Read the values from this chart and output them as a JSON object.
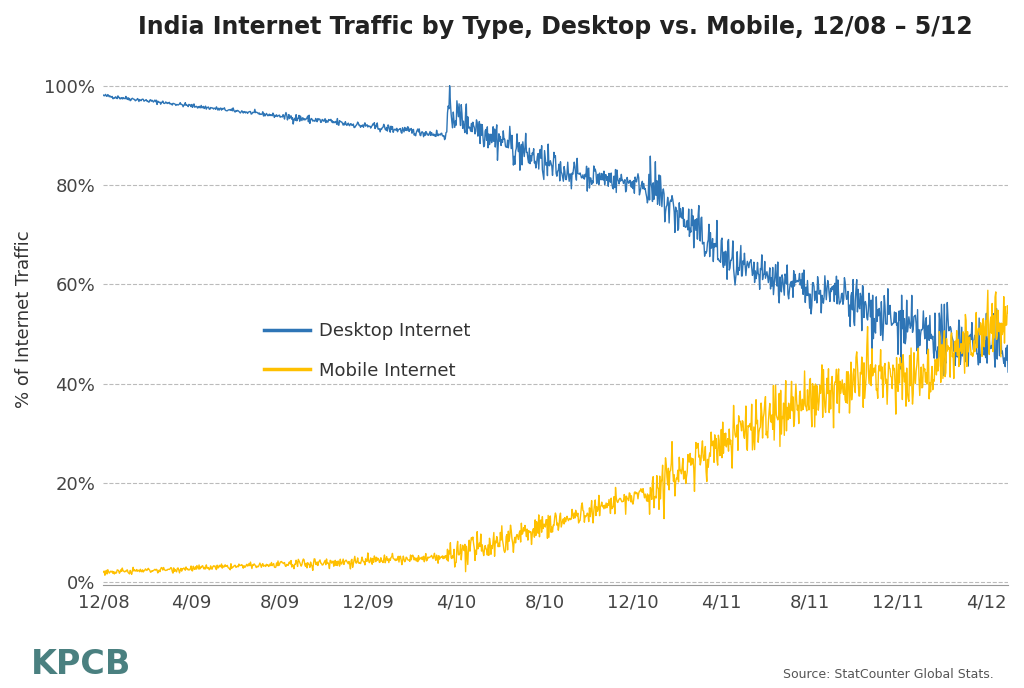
{
  "title": "India Internet Traffic by Type, Desktop vs. Mobile, 12/08 – 5/12",
  "ylabel": "% of Internet Traffic",
  "desktop_color": "#2E75B6",
  "mobile_color": "#FFC000",
  "background_color": "#FFFFFF",
  "grid_color": "#BBBBBB",
  "title_fontsize": 17,
  "label_fontsize": 13,
  "tick_fontsize": 13,
  "legend_fontsize": 13,
  "kpcb_color": "#4A8080",
  "source_text": "Source: StatCounter Global Stats.",
  "source_color": "#555555",
  "yticks": [
    0.0,
    0.2,
    0.4,
    0.6,
    0.8,
    1.0
  ],
  "ytick_labels": [
    "0%",
    "20%",
    "40%",
    "60%",
    "80%",
    "100%"
  ],
  "xtick_labels": [
    "12/08",
    "4/09",
    "8/09",
    "12/09",
    "4/10",
    "8/10",
    "12/10",
    "4/11",
    "8/11",
    "12/11",
    "4/12"
  ],
  "num_points": 1250
}
